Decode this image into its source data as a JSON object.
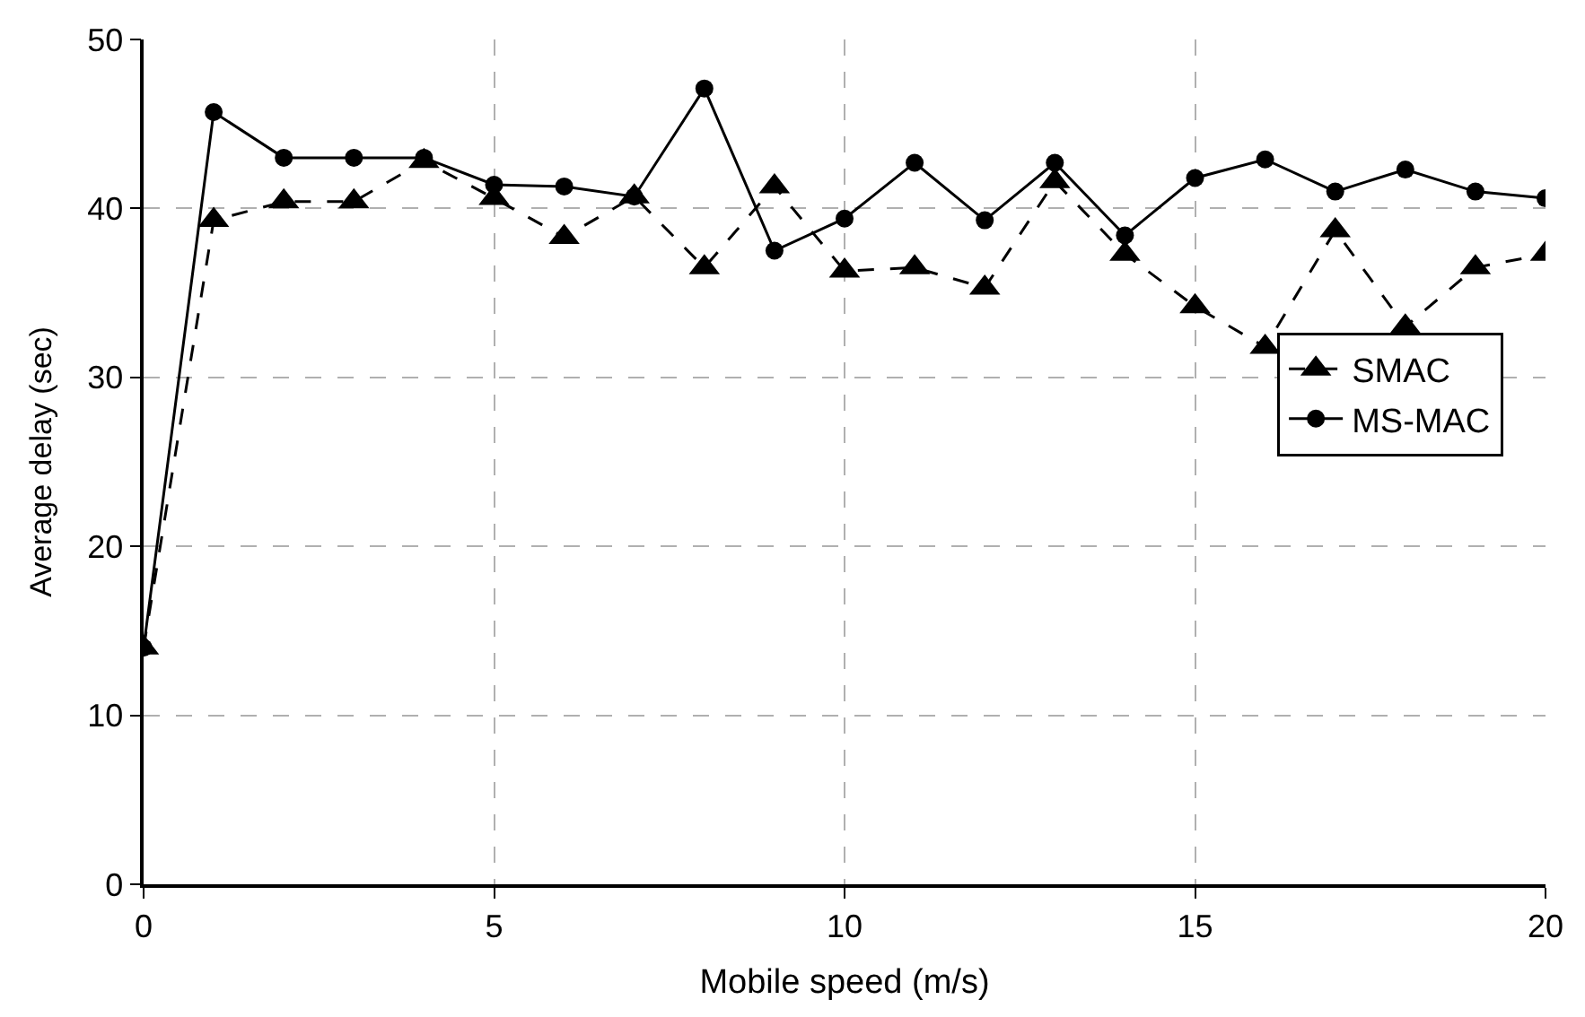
{
  "chart_data": {
    "type": "line",
    "xlabel": "Mobile speed (m/s)",
    "ylabel": "Average delay (sec)",
    "x": [
      0,
      1,
      2,
      3,
      4,
      5,
      6,
      7,
      8,
      9,
      10,
      11,
      12,
      13,
      14,
      15,
      16,
      17,
      18,
      19,
      20
    ],
    "series": [
      {
        "name": "SMAC",
        "color": "#000000",
        "line_style": "dashed",
        "marker": "triangle",
        "values": [
          14,
          39.3,
          40.4,
          40.4,
          42.8,
          40.6,
          38.3,
          40.7,
          36.5,
          41.3,
          36.3,
          36.5,
          35.3,
          41.6,
          37.3,
          34.2,
          31.8,
          38.7,
          33,
          36.5,
          37.3
        ]
      },
      {
        "name": "MS-MAC",
        "color": "#000000",
        "line_style": "solid",
        "marker": "circle",
        "values": [
          14,
          45.7,
          43,
          43,
          43,
          41.4,
          41.3,
          40.7,
          47.1,
          37.5,
          39.4,
          42.7,
          39.3,
          42.7,
          38.4,
          41.8,
          42.9,
          41,
          42.3,
          41,
          40.6
        ]
      }
    ],
    "xlim": [
      0,
      20
    ],
    "xticks": [
      0,
      5,
      10,
      15,
      20
    ],
    "ylim": [
      0,
      50
    ],
    "yticks": [
      0,
      10,
      20,
      30,
      40,
      50
    ],
    "grid": true,
    "legend": "right"
  }
}
